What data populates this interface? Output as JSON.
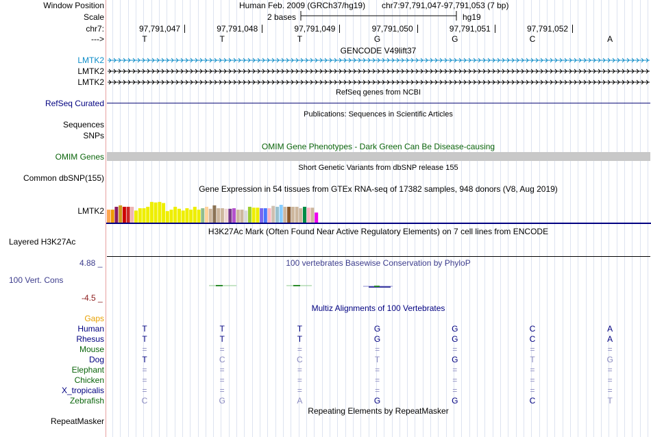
{
  "header": {
    "window_position_label": "Window Position",
    "assembly": "Human Feb. 2009 (GRCh37/hg19)",
    "position": "chr7:97,791,047-97,791,053 (7 bp)",
    "scale_label": "Scale",
    "scale_value": "2 bases",
    "scale_db": "hg19",
    "chrom_label": "chr7:",
    "strand_label": "--->",
    "positions": [
      "97,791,047",
      "97,791,048",
      "97,791,049",
      "97,791,050",
      "97,791,051",
      "97,791,052"
    ],
    "sequence": [
      "T",
      "T",
      "T",
      "G",
      "G",
      "C",
      "A"
    ]
  },
  "gencode": {
    "title": "GENCODE V49lift37",
    "rows": [
      "LMTK2",
      "LMTK2",
      "LMTK2"
    ],
    "row_colors": [
      "#0c8cc8",
      "#000000",
      "#000000"
    ]
  },
  "refseq": {
    "title": "RefSeq genes from NCBI",
    "label": "RefSeq Curated"
  },
  "publications": {
    "title": "Publications: Sequences in Scientific Articles",
    "rows": [
      "Sequences",
      "SNPs"
    ]
  },
  "omim": {
    "title": "OMIM Gene Phenotypes - Dark Green Can Be Disease-causing",
    "label": "OMIM Genes"
  },
  "dbsnp": {
    "title": "Short Genetic Variants from dbSNP release 155",
    "label": "Common dbSNP(155)"
  },
  "gtex": {
    "title": "Gene Expression in 54 tissues from GTEx RNA-seq of 17382 samples, 948 donors (V8, Aug 2019)",
    "label": "LMTK2",
    "bars": [
      {
        "v": 0.45,
        "c": "#ffa54f"
      },
      {
        "v": 0.45,
        "c": "#ee9a00"
      },
      {
        "v": 0.55,
        "c": "#8b1c62"
      },
      {
        "v": 0.6,
        "c": "#cd9b1d"
      },
      {
        "v": 0.55,
        "c": "#cd0000"
      },
      {
        "v": 0.55,
        "c": "#cd2626"
      },
      {
        "v": 0.55,
        "c": "#eeb4b4"
      },
      {
        "v": 0.42,
        "c": "#eeee00"
      },
      {
        "v": 0.5,
        "c": "#eeee00"
      },
      {
        "v": 0.5,
        "c": "#eeee00"
      },
      {
        "v": 0.55,
        "c": "#eeee00"
      },
      {
        "v": 0.72,
        "c": "#eeee00"
      },
      {
        "v": 0.7,
        "c": "#eeee00"
      },
      {
        "v": 0.72,
        "c": "#eeee00"
      },
      {
        "v": 0.68,
        "c": "#eeee00"
      },
      {
        "v": 0.4,
        "c": "#eeee00"
      },
      {
        "v": 0.45,
        "c": "#eeee00"
      },
      {
        "v": 0.55,
        "c": "#eeee00"
      },
      {
        "v": 0.48,
        "c": "#eeee00"
      },
      {
        "v": 0.42,
        "c": "#eeee00"
      },
      {
        "v": 0.5,
        "c": "#eeee00"
      },
      {
        "v": 0.45,
        "c": "#eeee00"
      },
      {
        "v": 0.55,
        "c": "#eeee00"
      },
      {
        "v": 0.45,
        "c": "#eeee00"
      },
      {
        "v": 0.5,
        "c": "#8fbc8f"
      },
      {
        "v": 0.55,
        "c": "#ffd39b"
      },
      {
        "v": 0.48,
        "c": "#cdb79e"
      },
      {
        "v": 0.6,
        "c": "#8b7355"
      },
      {
        "v": 0.5,
        "c": "#cdb79e"
      },
      {
        "v": 0.5,
        "c": "#cdb79e"
      },
      {
        "v": 0.48,
        "c": "#eed5d2"
      },
      {
        "v": 0.48,
        "c": "#7a378b"
      },
      {
        "v": 0.5,
        "c": "#b452cd"
      },
      {
        "v": 0.45,
        "c": "#cdb79e"
      },
      {
        "v": 0.45,
        "c": "#cdb79e"
      },
      {
        "v": 0.42,
        "c": "#d9d9d9"
      },
      {
        "v": 0.55,
        "c": "#9acd32"
      },
      {
        "v": 0.52,
        "c": "#eeee00"
      },
      {
        "v": 0.52,
        "c": "#eeee00"
      },
      {
        "v": 0.5,
        "c": "#7a67ee"
      },
      {
        "v": 0.5,
        "c": "#4876ff"
      },
      {
        "v": 0.5,
        "c": "#ffb6c1"
      },
      {
        "v": 0.58,
        "c": "#cdc0b0"
      },
      {
        "v": 0.55,
        "c": "#9ac0cd"
      },
      {
        "v": 0.62,
        "c": "#87ceff"
      },
      {
        "v": 0.55,
        "c": "#cdb79e"
      },
      {
        "v": 0.55,
        "c": "#8b5a2b"
      },
      {
        "v": 0.55,
        "c": "#cdb79e"
      },
      {
        "v": 0.55,
        "c": "#cdb79e"
      },
      {
        "v": 0.5,
        "c": "#cdb79e"
      },
      {
        "v": 0.55,
        "c": "#008b45"
      },
      {
        "v": 0.52,
        "c": "#ffb6c1"
      },
      {
        "v": 0.52,
        "c": "#cdb79e"
      },
      {
        "v": 0.35,
        "c": "#ee00ee"
      }
    ]
  },
  "h3k27ac": {
    "title": "H3K27Ac Mark (Often Found Near Active Regulatory Elements) on 7 cell lines from ENCODE",
    "label": "Layered H3K27Ac"
  },
  "phylop": {
    "title": "100 vertebrates Basewise Conservation by PhyloP",
    "label": "100 Vert. Cons",
    "ymax": "4.88 _",
    "ymin": "-4.5 _"
  },
  "multiz": {
    "title": "Multiz Alignments of 100 Vertebrates",
    "gaps_label": "Gaps",
    "species": [
      {
        "name": "Human",
        "name_color": "#000080",
        "bases": [
          "T",
          "T",
          "T",
          "G",
          "G",
          "C",
          "A"
        ],
        "faded": [
          false,
          false,
          false,
          false,
          false,
          false,
          false
        ]
      },
      {
        "name": "Rhesus",
        "name_color": "#000080",
        "bases": [
          "T",
          "T",
          "T",
          "G",
          "G",
          "C",
          "A"
        ],
        "faded": [
          false,
          false,
          false,
          false,
          false,
          false,
          false
        ]
      },
      {
        "name": "Mouse",
        "name_color": "#0a640a",
        "bases": [
          "=",
          "=",
          "=",
          "=",
          "=",
          "=",
          "="
        ],
        "faded": [
          true,
          true,
          true,
          true,
          true,
          true,
          true
        ]
      },
      {
        "name": "Dog",
        "name_color": "#000080",
        "bases": [
          "T",
          "C",
          "C",
          "T",
          "G",
          "T",
          "G"
        ],
        "faded": [
          false,
          true,
          true,
          true,
          false,
          true,
          true
        ]
      },
      {
        "name": "Elephant",
        "name_color": "#0a640a",
        "bases": [
          "=",
          "=",
          "=",
          "=",
          "=",
          "=",
          "="
        ],
        "faded": [
          true,
          true,
          true,
          true,
          true,
          true,
          true
        ]
      },
      {
        "name": "Chicken",
        "name_color": "#0a640a",
        "bases": [
          "=",
          "=",
          "=",
          "=",
          "=",
          "=",
          "="
        ],
        "faded": [
          true,
          true,
          true,
          true,
          true,
          true,
          true
        ]
      },
      {
        "name": "X_tropicalis",
        "name_color": "#000080",
        "bases": [
          "=",
          "=",
          "=",
          "=",
          "=",
          "=",
          "="
        ],
        "faded": [
          true,
          true,
          true,
          true,
          true,
          true,
          true
        ]
      },
      {
        "name": "Zebrafish",
        "name_color": "#0a640a",
        "bases": [
          "C",
          "G",
          "A",
          "G",
          "G",
          "C",
          "T"
        ],
        "faded": [
          true,
          true,
          true,
          false,
          false,
          false,
          true
        ]
      }
    ]
  },
  "repeatmasker": {
    "title": "Repeating Elements by RepeatMasker",
    "label": "RepeatMasker"
  }
}
